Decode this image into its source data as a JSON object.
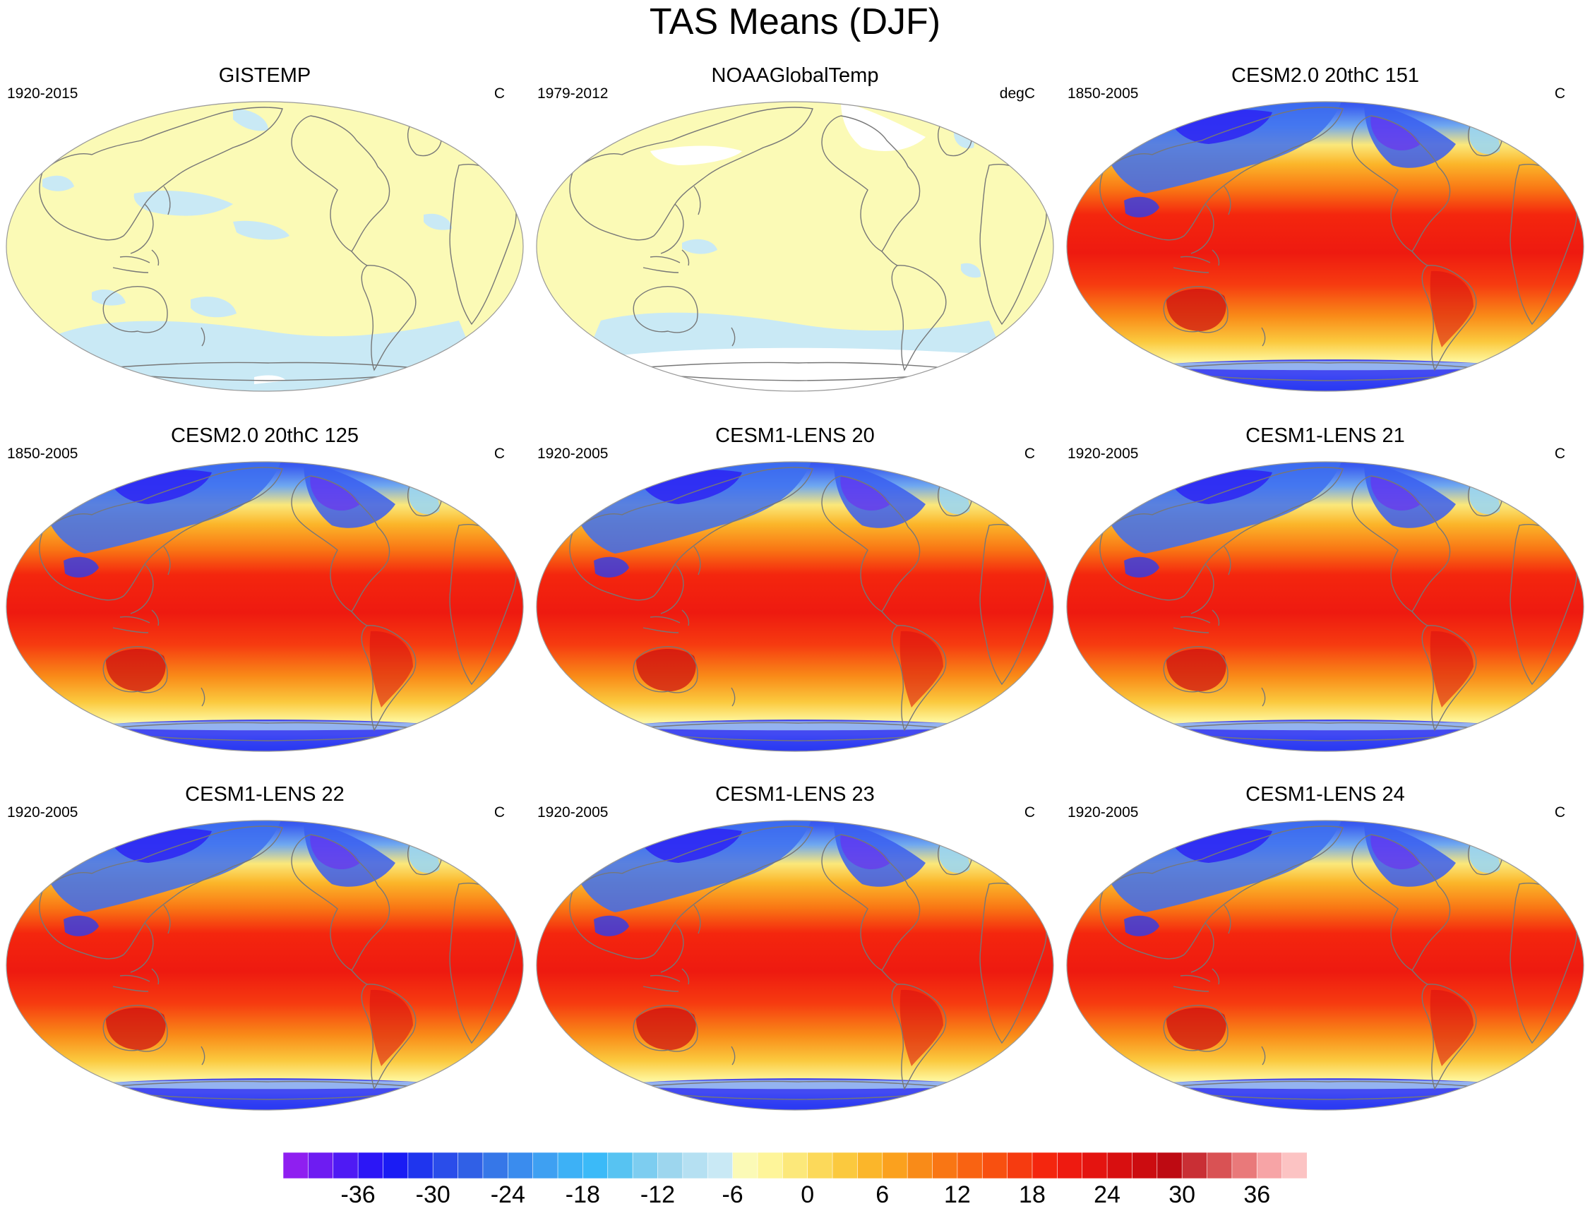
{
  "title": "TAS Means (DJF)",
  "panels": [
    {
      "title": "GISTEMP",
      "period": "1920-2015",
      "units": "C",
      "style": "obs1"
    },
    {
      "title": "NOAAGlobalTemp",
      "period": "1979-2012",
      "units": "degC",
      "style": "obs2"
    },
    {
      "title": "CESM2.0 20thC 151",
      "period": "1850-2005",
      "units": "C",
      "style": "model"
    },
    {
      "title": "CESM2.0 20thC 125",
      "period": "1850-2005",
      "units": "C",
      "style": "model"
    },
    {
      "title": "CESM1-LENS 20",
      "period": "1920-2005",
      "units": "C",
      "style": "model"
    },
    {
      "title": "CESM1-LENS 21",
      "period": "1920-2005",
      "units": "C",
      "style": "model"
    },
    {
      "title": "CESM1-LENS 22",
      "period": "1920-2005",
      "units": "C",
      "style": "model"
    },
    {
      "title": "CESM1-LENS 23",
      "period": "1920-2005",
      "units": "C",
      "style": "model"
    },
    {
      "title": "CESM1-LENS 24",
      "period": "1920-2005",
      "units": "C",
      "style": "model"
    }
  ],
  "colorbar": {
    "labels": [
      "-36",
      "-30",
      "-24",
      "-18",
      "-12",
      "-6",
      "0",
      "6",
      "12",
      "18",
      "24",
      "30",
      "36"
    ],
    "label_box_index": [
      3,
      6,
      9,
      12,
      15,
      18,
      21,
      24,
      27,
      30,
      33,
      36,
      39
    ],
    "colors": [
      "#8f1ff0",
      "#6e1cf2",
      "#4f1af4",
      "#2c16f6",
      "#1a1cf4",
      "#1f35ee",
      "#2a4dea",
      "#3060e6",
      "#3677e8",
      "#3a8cee",
      "#3ea0f2",
      "#3db1f6",
      "#3bbaf8",
      "#57c3f2",
      "#7dcdf0",
      "#9dd6ee",
      "#b5e0f2",
      "#c9e9f5",
      "#fbfab6",
      "#fef59a",
      "#fce87a",
      "#fcd95a",
      "#fbc93e",
      "#fbb62a",
      "#fba11e",
      "#f98b18",
      "#f97614",
      "#f96312",
      "#f85010",
      "#f63b10",
      "#f4260e",
      "#ee1a10",
      "#e41410",
      "#d80f10",
      "#cc0c10",
      "#be0a12",
      "#c92f35",
      "#d95254",
      "#e9797a",
      "#f7a4a6",
      "#fcc3c3"
    ]
  }
}
